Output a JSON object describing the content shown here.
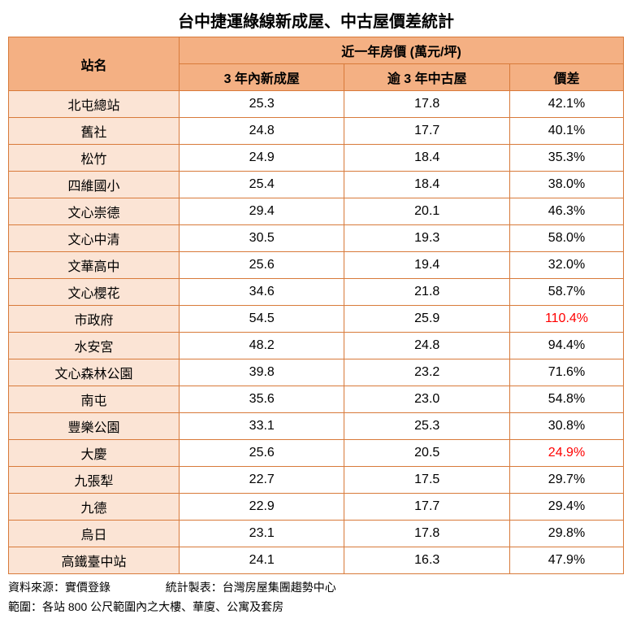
{
  "title": "台中捷運綠線新成屋、中古屋價差統計",
  "header": {
    "station": "站名",
    "group": "近一年房價 (萬元/坪)",
    "col_new": "3 年內新成屋",
    "col_old": "逾 3 年中古屋",
    "col_diff": "價差"
  },
  "rows": [
    {
      "station": "北屯總站",
      "new": "25.3",
      "old": "17.8",
      "diff": "42.1%",
      "diff_red": false
    },
    {
      "station": "舊社",
      "new": "24.8",
      "old": "17.7",
      "diff": "40.1%",
      "diff_red": false
    },
    {
      "station": "松竹",
      "new": "24.9",
      "old": "18.4",
      "diff": "35.3%",
      "diff_red": false
    },
    {
      "station": "四維國小",
      "new": "25.4",
      "old": "18.4",
      "diff": "38.0%",
      "diff_red": false
    },
    {
      "station": "文心崇德",
      "new": "29.4",
      "old": "20.1",
      "diff": "46.3%",
      "diff_red": false
    },
    {
      "station": "文心中清",
      "new": "30.5",
      "old": "19.3",
      "diff": "58.0%",
      "diff_red": false
    },
    {
      "station": "文華高中",
      "new": "25.6",
      "old": "19.4",
      "diff": "32.0%",
      "diff_red": false
    },
    {
      "station": "文心櫻花",
      "new": "34.6",
      "old": "21.8",
      "diff": "58.7%",
      "diff_red": false
    },
    {
      "station": "市政府",
      "new": "54.5",
      "old": "25.9",
      "diff": "110.4%",
      "diff_red": true
    },
    {
      "station": "水安宮",
      "new": "48.2",
      "old": "24.8",
      "diff": "94.4%",
      "diff_red": false
    },
    {
      "station": "文心森林公園",
      "new": "39.8",
      "old": "23.2",
      "diff": "71.6%",
      "diff_red": false
    },
    {
      "station": "南屯",
      "new": "35.6",
      "old": "23.0",
      "diff": "54.8%",
      "diff_red": false
    },
    {
      "station": "豐樂公園",
      "new": "33.1",
      "old": "25.3",
      "diff": "30.8%",
      "diff_red": false
    },
    {
      "station": "大慶",
      "new": "25.6",
      "old": "20.5",
      "diff": "24.9%",
      "diff_red": true
    },
    {
      "station": "九張犁",
      "new": "22.7",
      "old": "17.5",
      "diff": "29.7%",
      "diff_red": false
    },
    {
      "station": "九德",
      "new": "22.9",
      "old": "17.7",
      "diff": "29.4%",
      "diff_red": false
    },
    {
      "station": "烏日",
      "new": "23.1",
      "old": "17.8",
      "diff": "29.8%",
      "diff_red": false
    },
    {
      "station": "高鐵臺中站",
      "new": "24.1",
      "old": "16.3",
      "diff": "47.9%",
      "diff_red": false
    }
  ],
  "footer": {
    "source_label": "資料來源：實價登錄",
    "maker_label": "統計製表：台灣房屋集團趨勢中心",
    "scope_label": "範圍：各站 800 公尺範圍內之大樓、華廈、公寓及套房"
  },
  "colors": {
    "border": "#d87a3a",
    "header_bg": "#f4b083",
    "station_bg": "#fbe4d5",
    "data_bg": "#ffffff",
    "text": "#000000",
    "highlight": "#ff0000"
  }
}
